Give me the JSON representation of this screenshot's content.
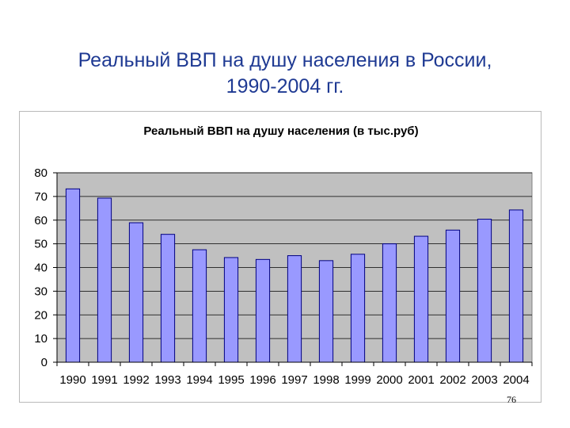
{
  "slide": {
    "title_line1": "Реальный ВВП на душу населения в России,",
    "title_line2": "1990-2004 гг.",
    "page_number": "76"
  },
  "colors": {
    "title": "#1f3a93",
    "plot_bg": "#c0c0c0",
    "bar_fill": "#9999ff",
    "bar_stroke": "#000080"
  },
  "chart_data": {
    "type": "bar",
    "title": "Реальный ВВП на душу населения (в тыс.руб)",
    "xlabel": "",
    "ylabel": "",
    "categories": [
      "1990",
      "1991",
      "1992",
      "1993",
      "1994",
      "1995",
      "1996",
      "1997",
      "1998",
      "1999",
      "2000",
      "2001",
      "2002",
      "2003",
      "2004"
    ],
    "values": [
      73.2,
      69.3,
      58.9,
      54.0,
      47.5,
      44.2,
      43.4,
      45.0,
      42.9,
      45.6,
      50.0,
      53.2,
      55.8,
      60.4,
      64.3
    ],
    "ylim": [
      0,
      80
    ],
    "yticks": [
      0,
      10,
      20,
      30,
      40,
      50,
      60,
      70,
      80
    ],
    "grid": true,
    "legend": "none"
  }
}
